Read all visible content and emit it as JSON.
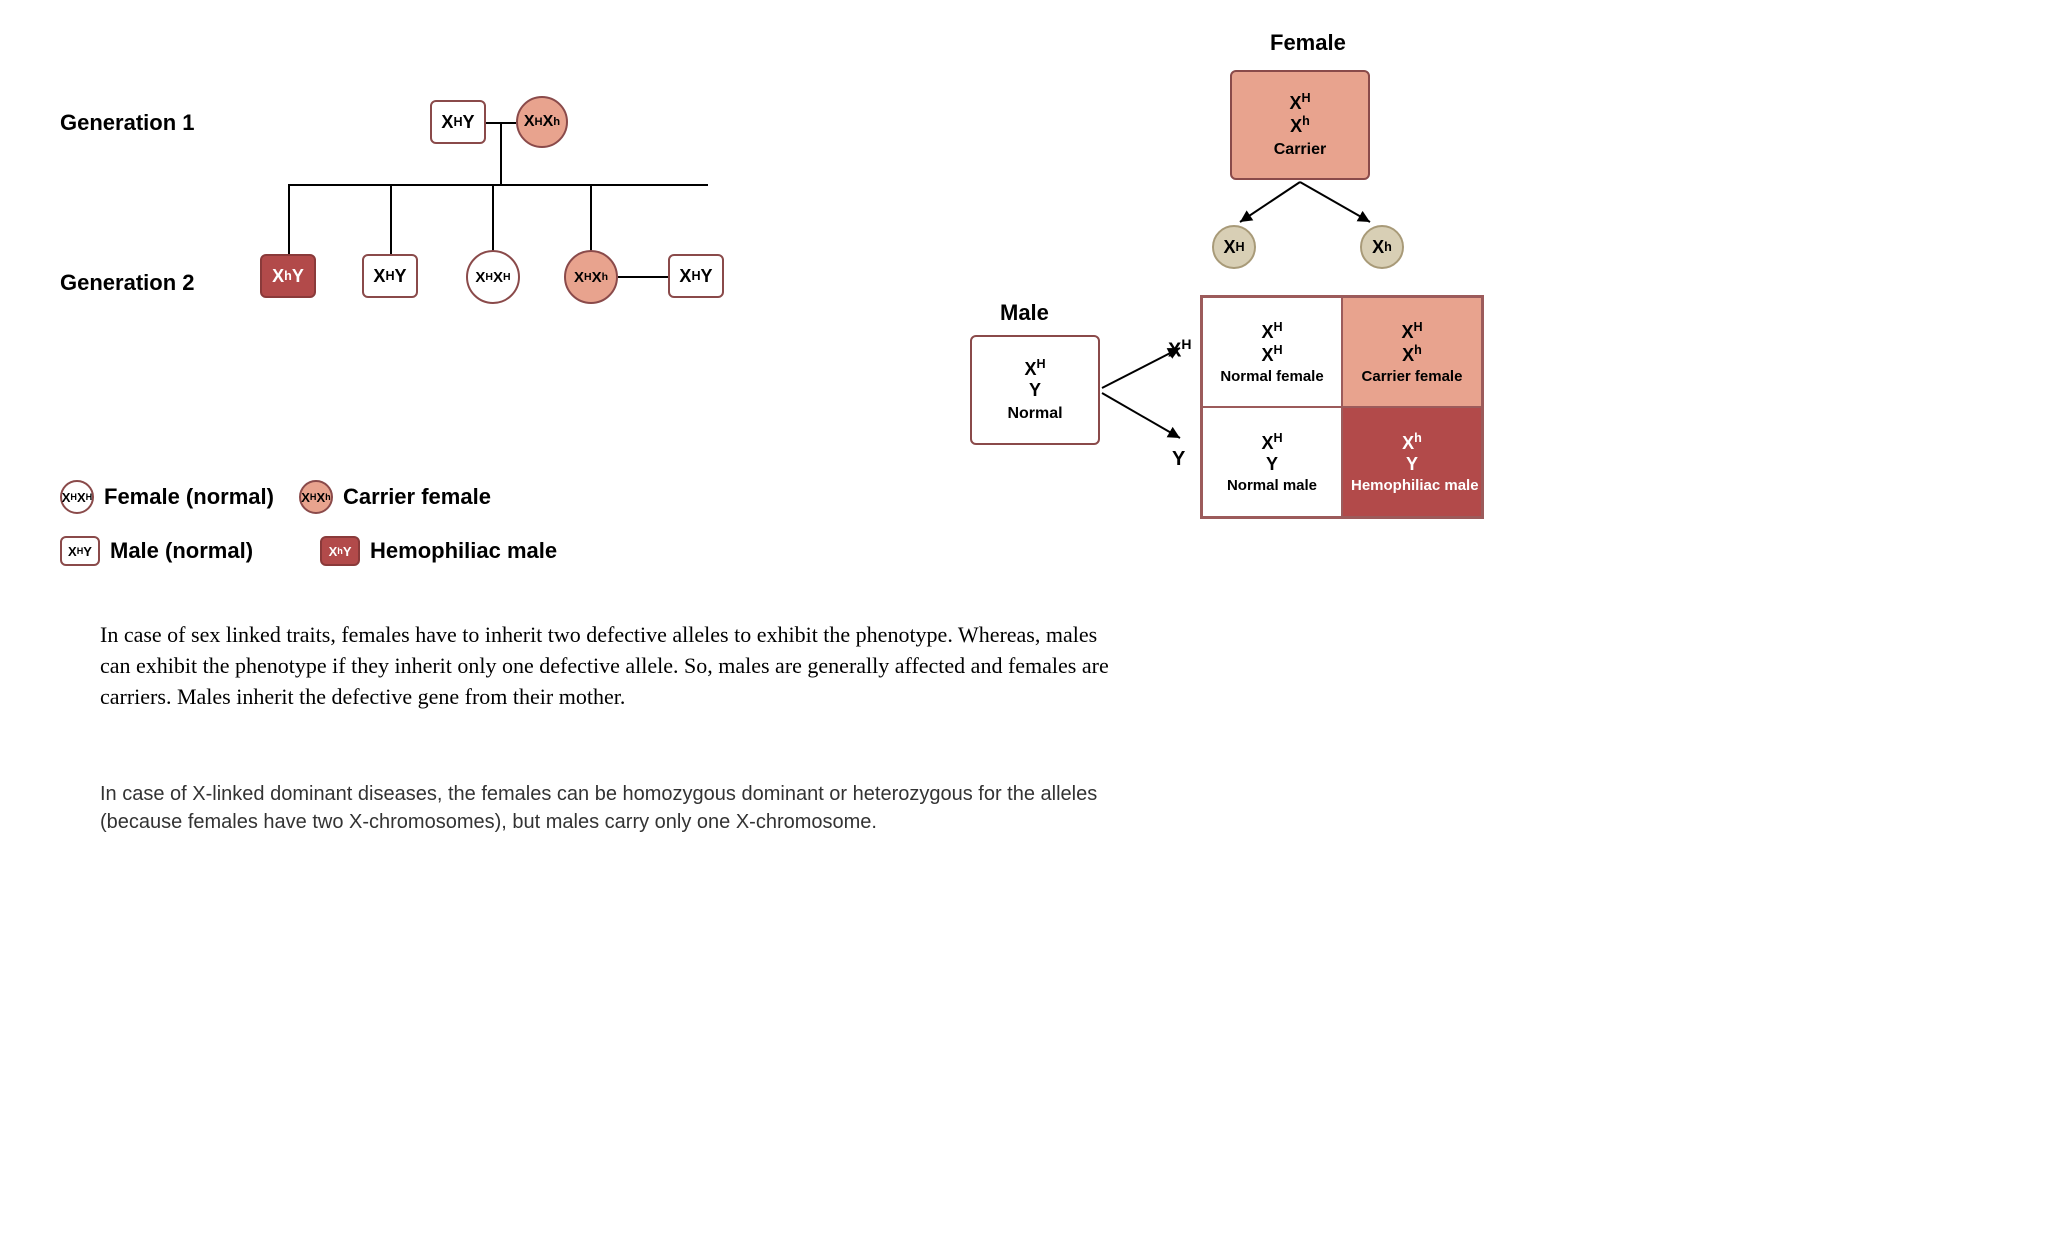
{
  "colors": {
    "normal_bg": "#ffffff",
    "carrier_bg": "#e8a38e",
    "affected_bg": "#b24a4a",
    "affected_text": "#ffffff",
    "normal_border": "#8a4a4a",
    "gamete_bg": "#d8cfb5",
    "gamete_border": "#a89a78",
    "punnett_border": "#9c5b5b"
  },
  "pedigree": {
    "gen1_label": "Generation 1",
    "gen2_label": "Generation 2",
    "father_gen1": "X<sup>H</sup>Y",
    "mother_gen1": "X<sup>H</sup>X<sup>h</sup>",
    "children": [
      {
        "shape": "square",
        "geno": "X<sup>h</sup>Y",
        "status": "affected"
      },
      {
        "shape": "square",
        "geno": "X<sup>H</sup>Y",
        "status": "normal"
      },
      {
        "shape": "circle",
        "geno": "X<sup>H</sup>X<sup>H</sup>",
        "status": "normal"
      },
      {
        "shape": "circle",
        "geno": "X<sup>H</sup>X<sup>h</sup>",
        "status": "carrier"
      },
      {
        "shape": "square",
        "geno": "X<sup>H</sup>Y",
        "status": "normal"
      }
    ]
  },
  "legend": {
    "female_normal": {
      "geno": "X<sup>H</sup>X<sup>H</sup>",
      "label": "Female (normal)"
    },
    "carrier_female": {
      "geno": "X<sup>H</sup>X<sup>h</sup>",
      "label": "Carrier female"
    },
    "male_normal": {
      "geno": "X<sup>H</sup>Y",
      "label": "Male (normal)"
    },
    "hemo_male": {
      "geno": "X<sup>h</sup>Y",
      "label": "Hemophiliac male"
    }
  },
  "punnett": {
    "female_header": "Female",
    "male_header": "Male",
    "mother": {
      "line1": "X<sup>H</sup>",
      "line2": "X<sup>h</sup>",
      "sub": "Carrier"
    },
    "father": {
      "line1": "X<sup>H</sup>",
      "line2": "Y",
      "sub": "Normal"
    },
    "mother_gametes": [
      "X<sup>H</sup>",
      "X<sup>h</sup>"
    ],
    "father_gametes": [
      "X<sup>H</sup>",
      "Y"
    ],
    "cells": [
      {
        "line1": "X<sup>H</sup>",
        "line2": "X<sup>H</sup>",
        "sub": "Normal female",
        "status": "normal"
      },
      {
        "line1": "X<sup>H</sup>",
        "line2": "X<sup>h</sup>",
        "sub": "Carrier female",
        "status": "carrier"
      },
      {
        "line1": "X<sup>H</sup>",
        "line2": "Y",
        "sub": "Normal male",
        "status": "normal"
      },
      {
        "line1": "X<sup>h</sup>",
        "line2": "Y",
        "sub": "Hemophiliac male",
        "status": "affected"
      }
    ]
  },
  "text": {
    "para1": "In case of sex linked traits, females have to inherit two defective alleles to exhibit the phenotype. Whereas, males can exhibit the phenotype if they inherit only one defective allele. So, males are generally affected and females are carriers. Males inherit the defective gene from their mother.",
    "para2": "In case of X-linked dominant diseases, the females can be homozygous dominant or heterozygous for the alleles (because females have two X-chromosomes), but males carry only one X-chromosome."
  }
}
